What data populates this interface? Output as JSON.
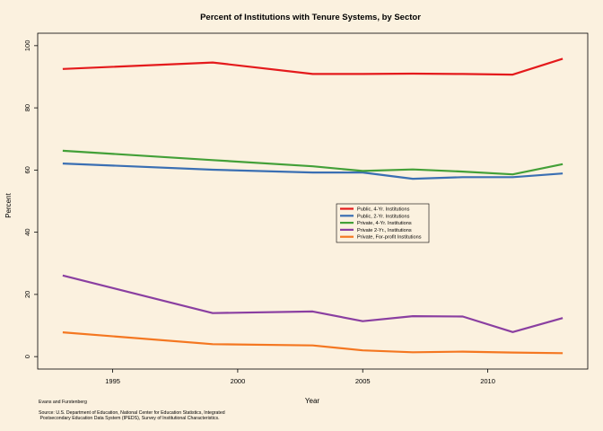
{
  "chart_data": {
    "type": "line",
    "title": "Percent of Institutions with Tenure Systems, by Sector",
    "xlabel": "Year",
    "ylabel": "Percent",
    "xlim": [
      1992.0,
      2014.0
    ],
    "ylim": [
      -4,
      104
    ],
    "xticks": [
      1995,
      2000,
      2005,
      2010
    ],
    "yticks": [
      0,
      20,
      40,
      60,
      80,
      100
    ],
    "grid": false,
    "legend_position": "center-right",
    "series": [
      {
        "name": "Public, 4-Yr. Institutions",
        "color": "#e41a1c",
        "x": [
          1993,
          1999,
          2003,
          2005,
          2007,
          2009,
          2011,
          2013
        ],
        "y": [
          92.5,
          94.6,
          90.9,
          90.9,
          91.0,
          90.9,
          90.7,
          95.8
        ]
      },
      {
        "name": "Public, 2-Yr. Institutions",
        "color": "#3a6fb3",
        "x": [
          1993,
          1999,
          2003,
          2005,
          2007,
          2009,
          2011,
          2013
        ],
        "y": [
          62.1,
          60.1,
          59.2,
          59.2,
          57.2,
          57.7,
          57.7,
          58.9
        ]
      },
      {
        "name": "Private, 4-Yr. Institutions",
        "color": "#43a038",
        "x": [
          1993,
          1999,
          2003,
          2005,
          2007,
          2009,
          2011,
          2013
        ],
        "y": [
          66.2,
          63.2,
          61.2,
          59.7,
          60.2,
          59.5,
          58.6,
          61.9
        ]
      },
      {
        "name": "Private 2-Yr., Institutions",
        "color": "#8a3fa1",
        "x": [
          1993,
          1999,
          2003,
          2005,
          2007,
          2009,
          2011,
          2013
        ],
        "y": [
          26.1,
          14.0,
          14.5,
          11.4,
          13.0,
          12.9,
          7.9,
          12.4
        ]
      },
      {
        "name": "Private, For-profit Institutions",
        "color": "#f47721",
        "x": [
          1993,
          1999,
          2003,
          2005,
          2007,
          2009,
          2011,
          2013
        ],
        "y": [
          7.8,
          4.0,
          3.6,
          2.0,
          1.4,
          1.6,
          1.3,
          1.1
        ]
      }
    ]
  },
  "notes": {
    "credit": "Evans and Furstenberg",
    "source_line1": "Source: U.S. Department of Education, National Center for Education Statistics, Integrated",
    "source_line2": " Postsecondary Education Data System (IPEDS), Survey of Institutional Characteristics."
  }
}
